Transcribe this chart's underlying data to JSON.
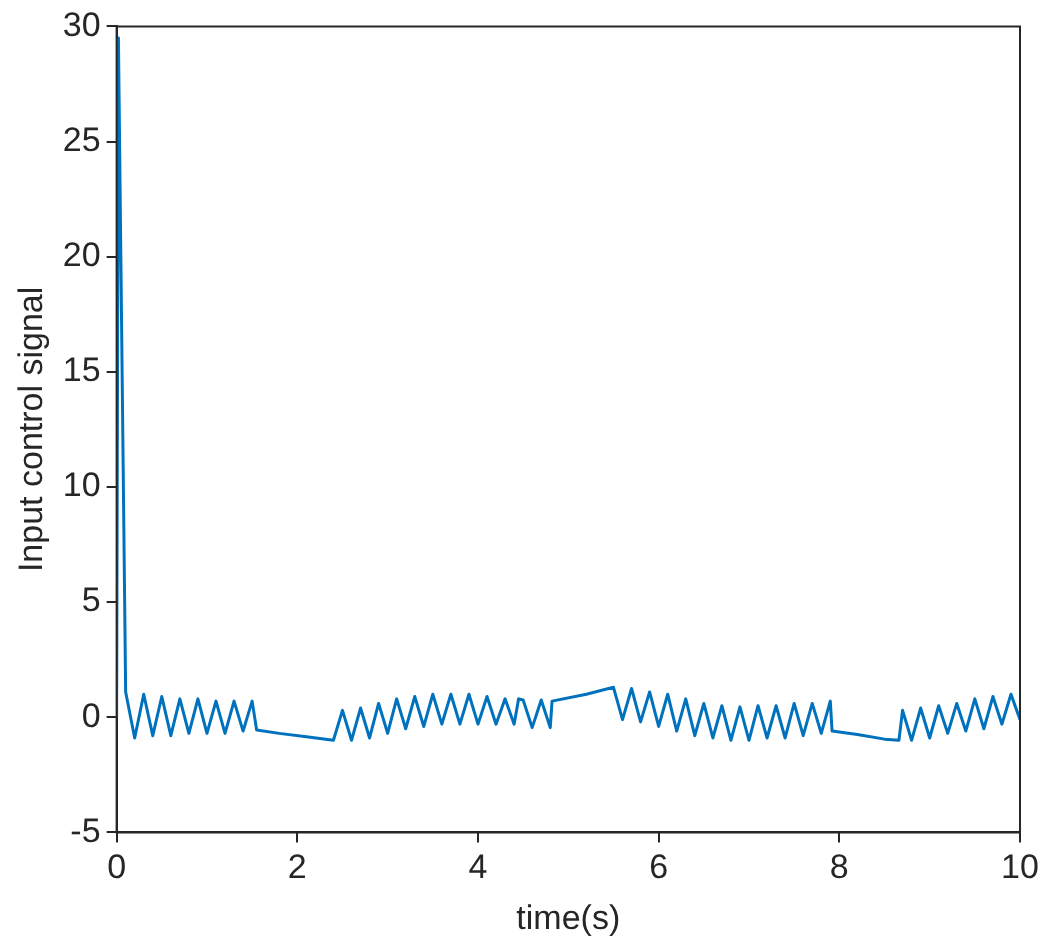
{
  "chart_data": {
    "type": "line",
    "xlabel": "time(s)",
    "ylabel": "Input control signal",
    "xlim": [
      0,
      10
    ],
    "xticks": [
      0,
      2,
      4,
      6,
      8,
      10
    ],
    "ylim": [
      -5,
      30
    ],
    "yticks": [
      -5,
      0,
      5,
      10,
      15,
      20,
      25,
      30
    ],
    "grid": false,
    "legend": false,
    "marker": "none",
    "line_style": "solid",
    "series": [
      {
        "color": "#0072bd",
        "x": [
          0,
          0.02,
          0.1,
          0.2,
          0.3,
          0.4,
          0.5,
          0.6,
          0.7,
          0.8,
          0.9,
          1.0,
          1.1,
          1.2,
          1.3,
          1.4,
          1.5,
          1.55,
          1.8,
          2.1,
          2.4,
          2.5,
          2.6,
          2.7,
          2.8,
          2.9,
          3.0,
          3.1,
          3.2,
          3.3,
          3.4,
          3.5,
          3.6,
          3.7,
          3.8,
          3.9,
          4.0,
          4.1,
          4.2,
          4.3,
          4.4,
          4.45,
          4.5,
          4.6,
          4.7,
          4.8,
          4.82,
          5.2,
          5.5,
          5.6,
          5.7,
          5.8,
          5.9,
          6.0,
          6.1,
          6.2,
          6.3,
          6.4,
          6.5,
          6.6,
          6.7,
          6.8,
          6.9,
          7.0,
          7.1,
          7.2,
          7.3,
          7.4,
          7.5,
          7.6,
          7.7,
          7.8,
          7.9,
          7.92,
          8.2,
          8.5,
          8.66,
          8.7,
          8.8,
          8.9,
          9.0,
          9.1,
          9.2,
          9.3,
          9.4,
          9.5,
          9.6,
          9.7,
          9.8,
          9.9,
          10.0
        ],
        "values": [
          0,
          29.5,
          1.1,
          -0.9,
          1.0,
          -0.8,
          0.9,
          -0.8,
          0.8,
          -0.7,
          0.8,
          -0.7,
          0.7,
          -0.7,
          0.7,
          -0.6,
          0.7,
          -0.55,
          -0.7,
          -0.85,
          -1.0,
          0.3,
          -1.0,
          0.4,
          -0.9,
          0.6,
          -0.7,
          0.8,
          -0.5,
          0.9,
          -0.4,
          1.0,
          -0.3,
          1.0,
          -0.3,
          1.0,
          -0.3,
          0.9,
          -0.3,
          0.8,
          -0.3,
          0.8,
          0.75,
          -0.45,
          0.75,
          -0.45,
          0.7,
          1.0,
          1.3,
          -0.1,
          1.25,
          -0.2,
          1.1,
          -0.4,
          1.0,
          -0.6,
          0.8,
          -0.8,
          0.6,
          -0.9,
          0.5,
          -1.0,
          0.45,
          -1.0,
          0.5,
          -0.9,
          0.5,
          -0.9,
          0.6,
          -0.8,
          0.6,
          -0.7,
          0.7,
          -0.6,
          -0.75,
          -0.95,
          -1.0,
          0.3,
          -1.0,
          0.4,
          -0.9,
          0.5,
          -0.7,
          0.6,
          -0.6,
          0.8,
          -0.5,
          0.9,
          -0.3,
          1.0,
          -0.1
        ]
      }
    ]
  }
}
